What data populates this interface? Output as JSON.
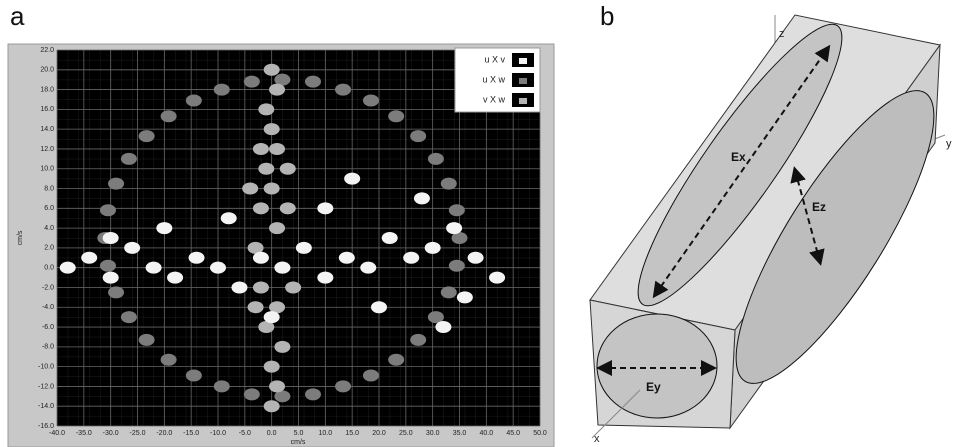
{
  "panel_labels": [
    "a",
    "b"
  ],
  "diagram": {
    "axis_labels": [
      "z",
      "y",
      "x"
    ],
    "ellipse_labels": [
      "Ex",
      "Ez",
      "Ey"
    ]
  },
  "chart_data": {
    "type": "scatter",
    "x_label": "cm/s",
    "y_label": "cm/s",
    "grid": true,
    "legend": "upper right",
    "xlim": [
      -40,
      50
    ],
    "ylim": [
      -16,
      22
    ],
    "xticks": [
      {
        "value": -40,
        "label": "-40.0"
      },
      {
        "value": -35,
        "label": "-35.0"
      },
      {
        "value": -30,
        "label": "-30.0"
      },
      {
        "value": -25,
        "label": "-25.0"
      },
      {
        "value": -20,
        "label": "-20.0"
      },
      {
        "value": -15,
        "label": "-15.0"
      },
      {
        "value": -10,
        "label": "-10.0"
      },
      {
        "value": -5,
        "label": "-5.0"
      },
      {
        "value": 0,
        "label": "0.0"
      },
      {
        "value": 5,
        "label": "5.0"
      },
      {
        "value": 10,
        "label": "10.0"
      },
      {
        "value": 15,
        "label": "15.0"
      },
      {
        "value": 20,
        "label": "20.0"
      },
      {
        "value": 25,
        "label": "25.0"
      },
      {
        "value": 30,
        "label": "30.0"
      },
      {
        "value": 35,
        "label": "35.0"
      },
      {
        "value": 40,
        "label": "40.0"
      },
      {
        "value": 45,
        "label": "45.0"
      },
      {
        "value": 50,
        "label": "50.0"
      }
    ],
    "yticks": [
      {
        "value": -16,
        "label": "-16.0"
      },
      {
        "value": -14,
        "label": "-14.0"
      },
      {
        "value": -12,
        "label": "-12.0"
      },
      {
        "value": -10,
        "label": "-10.0"
      },
      {
        "value": -8,
        "label": "-8.0"
      },
      {
        "value": -6,
        "label": "-6.0"
      },
      {
        "value": -4,
        "label": "-4.0"
      },
      {
        "value": -2,
        "label": "-2.0"
      },
      {
        "value": 0,
        "label": "0.0"
      },
      {
        "value": 2,
        "label": "2.0"
      },
      {
        "value": 4,
        "label": "4.0"
      },
      {
        "value": 6,
        "label": "6.0"
      },
      {
        "value": 8,
        "label": "8.0"
      },
      {
        "value": 10,
        "label": "10.0"
      },
      {
        "value": 12,
        "label": "12.0"
      },
      {
        "value": 14,
        "label": "14.0"
      },
      {
        "value": 16,
        "label": "16.0"
      },
      {
        "value": 18,
        "label": "18.0"
      },
      {
        "value": 20,
        "label": "20.0"
      },
      {
        "value": 22,
        "label": "22.0"
      }
    ],
    "series": [
      {
        "name": "u X v",
        "color": "#f4f4f4",
        "x": [
          -38,
          -34,
          -30,
          -26,
          -22,
          -18,
          -14,
          -10,
          -6,
          -2,
          2,
          6,
          10,
          14,
          18,
          22,
          26,
          30,
          34,
          38,
          42,
          -20,
          -8,
          10,
          20,
          28,
          36,
          -30,
          0,
          15,
          32
        ],
        "y": [
          0,
          1,
          -1,
          2,
          0,
          -1,
          1,
          0,
          -2,
          1,
          0,
          2,
          -1,
          1,
          0,
          3,
          1,
          2,
          4,
          1,
          -1,
          4,
          5,
          6,
          -4,
          7,
          -3,
          3,
          -5,
          9,
          -6
        ]
      },
      {
        "name": "u X w",
        "color": "#7c7c7c",
        "x": [
          35,
          34.5,
          33,
          30.6,
          27.3,
          23.2,
          18.5,
          13.3,
          7.7,
          2,
          -3.7,
          -9.3,
          -14.5,
          -19.2,
          -23.3,
          -26.6,
          -29,
          -30.5,
          -31,
          -30.5,
          -29,
          -26.6,
          -23.3,
          -19.2,
          -14.5,
          -9.3,
          -3.7,
          2,
          7.7,
          13.3,
          18.5,
          23.2,
          27.3,
          30.6,
          33,
          34.5
        ],
        "y": [
          3,
          5.8,
          8.5,
          11,
          13.3,
          15.3,
          16.9,
          18,
          18.8,
          19,
          18.8,
          18,
          16.9,
          15.3,
          13.3,
          11,
          8.5,
          5.8,
          3,
          0.2,
          -2.5,
          -5,
          -7.3,
          -9.3,
          -10.9,
          -12,
          -12.8,
          -13,
          -12.8,
          -12,
          -10.9,
          -9.3,
          -7.3,
          -5,
          -2.5,
          0.2
        ]
      },
      {
        "name": "v X w",
        "color": "#b4b4b4",
        "x": [
          0,
          1,
          -1,
          0,
          1,
          -1,
          0,
          -2,
          1,
          -3,
          2,
          -2,
          1,
          -1,
          2,
          0,
          1,
          0,
          -4,
          3,
          -3,
          4,
          3,
          -2
        ],
        "y": [
          20,
          18,
          16,
          14,
          12,
          10,
          8,
          6,
          4,
          2,
          0,
          -2,
          -4,
          -6,
          -8,
          -10,
          -12,
          -14,
          8,
          6,
          -4,
          -2,
          10,
          12
        ]
      }
    ]
  }
}
